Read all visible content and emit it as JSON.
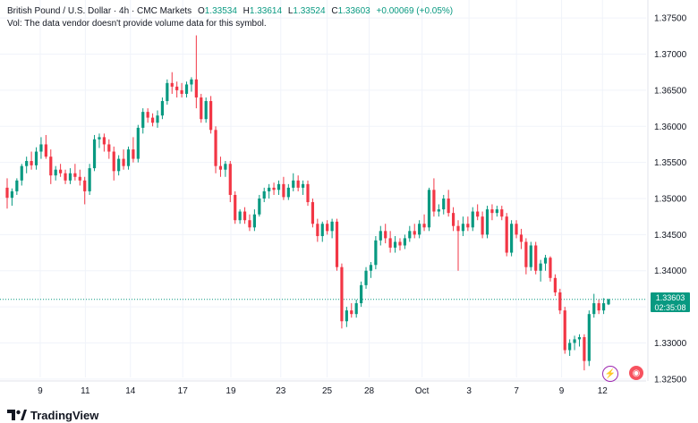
{
  "header": {
    "symbol_title": "British Pound / U.S. Dollar · 4h · CMC Markets",
    "ohlc": [
      {
        "label": "O",
        "value": "1.33534"
      },
      {
        "label": "H",
        "value": "1.33614"
      },
      {
        "label": "L",
        "value": "1.33524"
      },
      {
        "label": "C",
        "value": "1.33603"
      }
    ],
    "change": "+0.00069 (+0.05%)",
    "volume_note": "Vol: The data vendor doesn't provide volume data for this symbol."
  },
  "last_price": {
    "value": "1.33603",
    "countdown": "02:35:08"
  },
  "colors": {
    "up": "#089981",
    "down": "#f23645",
    "grid": "#f0f3fa",
    "text": "#131722"
  },
  "icons": [
    "lightning-icon",
    "news-icon"
  ],
  "brand": "TradingView",
  "chart_data": {
    "type": "candlestick",
    "y_ticks": [
      "1.37500",
      "1.37000",
      "1.36500",
      "1.36000",
      "1.35500",
      "1.35000",
      "1.34500",
      "1.34000",
      "1.33500",
      "1.33000",
      "1.32500"
    ],
    "ylim": [
      1.3225,
      1.3775
    ],
    "x_ticks": [
      "9",
      "11",
      "14",
      "17",
      "19",
      "23",
      "25",
      "28",
      "Oct",
      "3",
      "7",
      "9",
      "12"
    ],
    "grid": true,
    "candles": [
      {
        "o": 1.3515,
        "h": 1.3528,
        "l": 1.3486,
        "c": 1.3501
      },
      {
        "o": 1.3501,
        "h": 1.3514,
        "l": 1.349,
        "c": 1.351
      },
      {
        "o": 1.351,
        "h": 1.3528,
        "l": 1.3505,
        "c": 1.3525
      },
      {
        "o": 1.3525,
        "h": 1.3548,
        "l": 1.3518,
        "c": 1.3545
      },
      {
        "o": 1.3545,
        "h": 1.3558,
        "l": 1.3535,
        "c": 1.3552
      },
      {
        "o": 1.3552,
        "h": 1.3565,
        "l": 1.354,
        "c": 1.3546
      },
      {
        "o": 1.3546,
        "h": 1.3571,
        "l": 1.354,
        "c": 1.3565
      },
      {
        "o": 1.3565,
        "h": 1.3585,
        "l": 1.3555,
        "c": 1.3575
      },
      {
        "o": 1.3575,
        "h": 1.3588,
        "l": 1.3555,
        "c": 1.3558
      },
      {
        "o": 1.3558,
        "h": 1.3568,
        "l": 1.352,
        "c": 1.3532
      },
      {
        "o": 1.3532,
        "h": 1.3545,
        "l": 1.3525,
        "c": 1.354
      },
      {
        "o": 1.354,
        "h": 1.3548,
        "l": 1.353,
        "c": 1.3535
      },
      {
        "o": 1.3535,
        "h": 1.354,
        "l": 1.352,
        "c": 1.3525
      },
      {
        "o": 1.3525,
        "h": 1.3542,
        "l": 1.352,
        "c": 1.3535
      },
      {
        "o": 1.3535,
        "h": 1.3548,
        "l": 1.3525,
        "c": 1.353
      },
      {
        "o": 1.353,
        "h": 1.354,
        "l": 1.3518,
        "c": 1.3525
      },
      {
        "o": 1.3525,
        "h": 1.353,
        "l": 1.3492,
        "c": 1.351
      },
      {
        "o": 1.351,
        "h": 1.3548,
        "l": 1.3505,
        "c": 1.3542
      },
      {
        "o": 1.3542,
        "h": 1.3588,
        "l": 1.3538,
        "c": 1.3582
      },
      {
        "o": 1.3582,
        "h": 1.359,
        "l": 1.357,
        "c": 1.3585
      },
      {
        "o": 1.3585,
        "h": 1.359,
        "l": 1.3565,
        "c": 1.3575
      },
      {
        "o": 1.3575,
        "h": 1.3582,
        "l": 1.3555,
        "c": 1.3565
      },
      {
        "o": 1.3565,
        "h": 1.3572,
        "l": 1.3525,
        "c": 1.3538
      },
      {
        "o": 1.3538,
        "h": 1.356,
        "l": 1.3532,
        "c": 1.3555
      },
      {
        "o": 1.3555,
        "h": 1.3568,
        "l": 1.354,
        "c": 1.3545
      },
      {
        "o": 1.3545,
        "h": 1.3572,
        "l": 1.354,
        "c": 1.3568
      },
      {
        "o": 1.3568,
        "h": 1.3585,
        "l": 1.355,
        "c": 1.3555
      },
      {
        "o": 1.3555,
        "h": 1.3602,
        "l": 1.355,
        "c": 1.3598
      },
      {
        "o": 1.3598,
        "h": 1.3625,
        "l": 1.359,
        "c": 1.362
      },
      {
        "o": 1.362,
        "h": 1.3625,
        "l": 1.3605,
        "c": 1.3612
      },
      {
        "o": 1.3612,
        "h": 1.3618,
        "l": 1.36,
        "c": 1.3605
      },
      {
        "o": 1.3605,
        "h": 1.3622,
        "l": 1.3598,
        "c": 1.3615
      },
      {
        "o": 1.3615,
        "h": 1.364,
        "l": 1.361,
        "c": 1.3635
      },
      {
        "o": 1.3635,
        "h": 1.3665,
        "l": 1.363,
        "c": 1.366
      },
      {
        "o": 1.366,
        "h": 1.3675,
        "l": 1.3645,
        "c": 1.3655
      },
      {
        "o": 1.3655,
        "h": 1.3662,
        "l": 1.364,
        "c": 1.365
      },
      {
        "o": 1.365,
        "h": 1.366,
        "l": 1.364,
        "c": 1.3645
      },
      {
        "o": 1.3645,
        "h": 1.3662,
        "l": 1.364,
        "c": 1.3658
      },
      {
        "o": 1.3658,
        "h": 1.3668,
        "l": 1.3648,
        "c": 1.3665
      },
      {
        "o": 1.3665,
        "h": 1.3726,
        "l": 1.3625,
        "c": 1.364
      },
      {
        "o": 1.364,
        "h": 1.3645,
        "l": 1.3605,
        "c": 1.361
      },
      {
        "o": 1.361,
        "h": 1.364,
        "l": 1.3605,
        "c": 1.3635
      },
      {
        "o": 1.3635,
        "h": 1.3642,
        "l": 1.359,
        "c": 1.3595
      },
      {
        "o": 1.3595,
        "h": 1.36,
        "l": 1.3535,
        "c": 1.3545
      },
      {
        "o": 1.3545,
        "h": 1.3558,
        "l": 1.353,
        "c": 1.354
      },
      {
        "o": 1.354,
        "h": 1.3552,
        "l": 1.353,
        "c": 1.3548
      },
      {
        "o": 1.3548,
        "h": 1.3552,
        "l": 1.3495,
        "c": 1.3505
      },
      {
        "o": 1.3505,
        "h": 1.351,
        "l": 1.3465,
        "c": 1.347
      },
      {
        "o": 1.347,
        "h": 1.3485,
        "l": 1.3465,
        "c": 1.3482
      },
      {
        "o": 1.3482,
        "h": 1.3488,
        "l": 1.3465,
        "c": 1.347
      },
      {
        "o": 1.347,
        "h": 1.3478,
        "l": 1.3455,
        "c": 1.346
      },
      {
        "o": 1.346,
        "h": 1.3485,
        "l": 1.3455,
        "c": 1.3478
      },
      {
        "o": 1.3478,
        "h": 1.3505,
        "l": 1.3475,
        "c": 1.35
      },
      {
        "o": 1.35,
        "h": 1.3515,
        "l": 1.3495,
        "c": 1.351
      },
      {
        "o": 1.351,
        "h": 1.352,
        "l": 1.35,
        "c": 1.3515
      },
      {
        "o": 1.3515,
        "h": 1.3522,
        "l": 1.3505,
        "c": 1.3512
      },
      {
        "o": 1.3512,
        "h": 1.3525,
        "l": 1.3505,
        "c": 1.352
      },
      {
        "o": 1.352,
        "h": 1.353,
        "l": 1.3498,
        "c": 1.3502
      },
      {
        "o": 1.3502,
        "h": 1.352,
        "l": 1.3498,
        "c": 1.3515
      },
      {
        "o": 1.3515,
        "h": 1.3535,
        "l": 1.351,
        "c": 1.3525
      },
      {
        "o": 1.3525,
        "h": 1.3532,
        "l": 1.351,
        "c": 1.3515
      },
      {
        "o": 1.3515,
        "h": 1.3525,
        "l": 1.3505,
        "c": 1.352
      },
      {
        "o": 1.352,
        "h": 1.3525,
        "l": 1.349,
        "c": 1.3495
      },
      {
        "o": 1.3495,
        "h": 1.35,
        "l": 1.346,
        "c": 1.3465
      },
      {
        "o": 1.3465,
        "h": 1.3472,
        "l": 1.344,
        "c": 1.3448
      },
      {
        "o": 1.3448,
        "h": 1.3468,
        "l": 1.344,
        "c": 1.3465
      },
      {
        "o": 1.3465,
        "h": 1.347,
        "l": 1.345,
        "c": 1.3455
      },
      {
        "o": 1.3455,
        "h": 1.3472,
        "l": 1.3445,
        "c": 1.3468
      },
      {
        "o": 1.3468,
        "h": 1.3472,
        "l": 1.34,
        "c": 1.3405
      },
      {
        "o": 1.3405,
        "h": 1.341,
        "l": 1.332,
        "c": 1.333
      },
      {
        "o": 1.333,
        "h": 1.335,
        "l": 1.3322,
        "c": 1.3345
      },
      {
        "o": 1.3345,
        "h": 1.3355,
        "l": 1.3335,
        "c": 1.334
      },
      {
        "o": 1.334,
        "h": 1.336,
        "l": 1.3335,
        "c": 1.3355
      },
      {
        "o": 1.3355,
        "h": 1.3385,
        "l": 1.335,
        "c": 1.338
      },
      {
        "o": 1.338,
        "h": 1.3405,
        "l": 1.3375,
        "c": 1.34
      },
      {
        "o": 1.34,
        "h": 1.3412,
        "l": 1.339,
        "c": 1.3408
      },
      {
        "o": 1.3408,
        "h": 1.3448,
        "l": 1.3402,
        "c": 1.3442
      },
      {
        "o": 1.3442,
        "h": 1.3462,
        "l": 1.3435,
        "c": 1.3455
      },
      {
        "o": 1.3455,
        "h": 1.3465,
        "l": 1.3438,
        "c": 1.3445
      },
      {
        "o": 1.3445,
        "h": 1.3455,
        "l": 1.3425,
        "c": 1.3432
      },
      {
        "o": 1.3432,
        "h": 1.3448,
        "l": 1.3425,
        "c": 1.344
      },
      {
        "o": 1.344,
        "h": 1.3445,
        "l": 1.3428,
        "c": 1.3435
      },
      {
        "o": 1.3435,
        "h": 1.345,
        "l": 1.343,
        "c": 1.3445
      },
      {
        "o": 1.3445,
        "h": 1.3462,
        "l": 1.344,
        "c": 1.3455
      },
      {
        "o": 1.3455,
        "h": 1.3465,
        "l": 1.3445,
        "c": 1.345
      },
      {
        "o": 1.345,
        "h": 1.347,
        "l": 1.3445,
        "c": 1.3465
      },
      {
        "o": 1.3465,
        "h": 1.3478,
        "l": 1.3455,
        "c": 1.346
      },
      {
        "o": 1.346,
        "h": 1.3515,
        "l": 1.3455,
        "c": 1.3512
      },
      {
        "o": 1.3512,
        "h": 1.3528,
        "l": 1.3475,
        "c": 1.3482
      },
      {
        "o": 1.3482,
        "h": 1.3492,
        "l": 1.3475,
        "c": 1.3485
      },
      {
        "o": 1.3485,
        "h": 1.3505,
        "l": 1.3478,
        "c": 1.35
      },
      {
        "o": 1.35,
        "h": 1.3512,
        "l": 1.3475,
        "c": 1.348
      },
      {
        "o": 1.348,
        "h": 1.3488,
        "l": 1.3455,
        "c": 1.3462
      },
      {
        "o": 1.3462,
        "h": 1.347,
        "l": 1.34,
        "c": 1.3455
      },
      {
        "o": 1.3455,
        "h": 1.3475,
        "l": 1.3448,
        "c": 1.3465
      },
      {
        "o": 1.3465,
        "h": 1.3475,
        "l": 1.3455,
        "c": 1.346
      },
      {
        "o": 1.346,
        "h": 1.3488,
        "l": 1.3455,
        "c": 1.3482
      },
      {
        "o": 1.3482,
        "h": 1.3492,
        "l": 1.347,
        "c": 1.3475
      },
      {
        "o": 1.3475,
        "h": 1.3482,
        "l": 1.3445,
        "c": 1.345
      },
      {
        "o": 1.345,
        "h": 1.349,
        "l": 1.3445,
        "c": 1.3485
      },
      {
        "o": 1.3485,
        "h": 1.3492,
        "l": 1.347,
        "c": 1.348
      },
      {
        "o": 1.348,
        "h": 1.349,
        "l": 1.3475,
        "c": 1.3485
      },
      {
        "o": 1.3485,
        "h": 1.349,
        "l": 1.347,
        "c": 1.3475
      },
      {
        "o": 1.3475,
        "h": 1.348,
        "l": 1.342,
        "c": 1.3425
      },
      {
        "o": 1.3425,
        "h": 1.347,
        "l": 1.342,
        "c": 1.3465
      },
      {
        "o": 1.3465,
        "h": 1.347,
        "l": 1.3445,
        "c": 1.345
      },
      {
        "o": 1.345,
        "h": 1.3458,
        "l": 1.343,
        "c": 1.344
      },
      {
        "o": 1.344,
        "h": 1.3445,
        "l": 1.3395,
        "c": 1.3405
      },
      {
        "o": 1.3405,
        "h": 1.344,
        "l": 1.34,
        "c": 1.3435
      },
      {
        "o": 1.3435,
        "h": 1.344,
        "l": 1.3395,
        "c": 1.34
      },
      {
        "o": 1.34,
        "h": 1.3415,
        "l": 1.3385,
        "c": 1.341
      },
      {
        "o": 1.341,
        "h": 1.3422,
        "l": 1.34,
        "c": 1.3418
      },
      {
        "o": 1.3418,
        "h": 1.342,
        "l": 1.3385,
        "c": 1.339
      },
      {
        "o": 1.339,
        "h": 1.3395,
        "l": 1.3365,
        "c": 1.337
      },
      {
        "o": 1.337,
        "h": 1.3375,
        "l": 1.334,
        "c": 1.3345
      },
      {
        "o": 1.3345,
        "h": 1.335,
        "l": 1.3285,
        "c": 1.329
      },
      {
        "o": 1.329,
        "h": 1.3305,
        "l": 1.3282,
        "c": 1.33
      },
      {
        "o": 1.33,
        "h": 1.331,
        "l": 1.329,
        "c": 1.3305
      },
      {
        "o": 1.3305,
        "h": 1.3312,
        "l": 1.3295,
        "c": 1.3308
      },
      {
        "o": 1.3308,
        "h": 1.3312,
        "l": 1.3262,
        "c": 1.3275
      },
      {
        "o": 1.3275,
        "h": 1.3345,
        "l": 1.3268,
        "c": 1.334
      },
      {
        "o": 1.334,
        "h": 1.3368,
        "l": 1.3335,
        "c": 1.3355
      },
      {
        "o": 1.3355,
        "h": 1.336,
        "l": 1.334,
        "c": 1.3345
      },
      {
        "o": 1.3345,
        "h": 1.3362,
        "l": 1.334,
        "c": 1.3355
      },
      {
        "o": 1.33534,
        "h": 1.33614,
        "l": 1.33524,
        "c": 1.33603
      }
    ]
  }
}
